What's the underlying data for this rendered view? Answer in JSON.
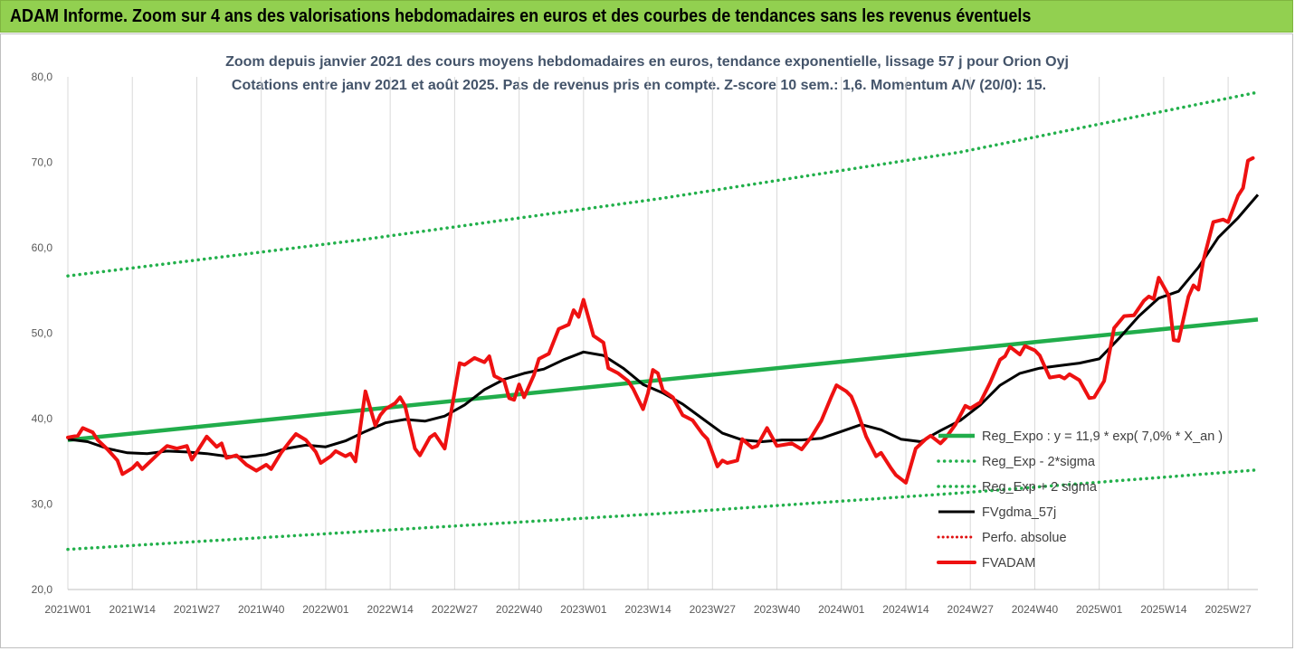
{
  "banner": {
    "title": "ADAM Informe. Zoom sur 4 ans des valorisations hebdomadaires en euros et des courbes de tendances sans les revenus éventuels"
  },
  "chart_data": {
    "type": "line",
    "title": "Zoom depuis janvier 2021 des cours moyens hebdomadaires en euros, tendance exponentielle, lissage 57 j pour Orion Oyj",
    "subtitle": "Cotations entre janv 2021 et août 2025.  Pas de revenus pris en compte. Z-score 10 sem.: 1,6. Momentum A/V (20/0): 15.",
    "ylim": [
      20,
      80
    ],
    "y_ticks": [
      "20,0",
      "30,0",
      "40,0",
      "50,0",
      "60,0",
      "70,0",
      "80,0"
    ],
    "x_ticks": [
      "2021W01",
      "2021W14",
      "2021W27",
      "2021W40",
      "2022W01",
      "2022W14",
      "2022W27",
      "2022W40",
      "2023W01",
      "2023W14",
      "2023W27",
      "2023W40",
      "2024W01",
      "2024W14",
      "2024W27",
      "2024W40",
      "2025W01",
      "2025W14",
      "2025W27"
    ],
    "x_tick_weeks": [
      0,
      13,
      26,
      39,
      52,
      65,
      78,
      91,
      104,
      117,
      130,
      143,
      156,
      169,
      182,
      195,
      208,
      221,
      234
    ],
    "x_max_week": 240,
    "legend_position": "bottom-right",
    "grid": "vertical",
    "colors": {
      "regression": "#21ad4b",
      "bands": "#22b04b",
      "smoothed": "#000000",
      "perf": "#e01010",
      "price": "#ee1111",
      "grid": "#d9d9d9"
    },
    "series": [
      {
        "name": "Reg_Expo : y = 11,9 * exp( 7,0% *  X_an )",
        "style": "regression",
        "points": [
          [
            0,
            37.5
          ],
          [
            240,
            51.6
          ]
        ]
      },
      {
        "name": "Reg_Exp - 2*sigma",
        "style": "band",
        "points": [
          [
            0,
            24.7
          ],
          [
            60,
            26.8
          ],
          [
            120,
            28.9
          ],
          [
            180,
            31.3
          ],
          [
            240,
            34.0
          ]
        ]
      },
      {
        "name": "Reg_Exp + 2 sigma",
        "style": "band",
        "points": [
          [
            0,
            56.7
          ],
          [
            60,
            61.0
          ],
          [
            120,
            65.8
          ],
          [
            180,
            71.2
          ],
          [
            240,
            78.2
          ]
        ]
      },
      {
        "name": "FVgdma_57j",
        "style": "smoothed",
        "points": [
          [
            0,
            37.6
          ],
          [
            4,
            37.3
          ],
          [
            8,
            36.5
          ],
          [
            12,
            36.0
          ],
          [
            16,
            35.9
          ],
          [
            20,
            36.2
          ],
          [
            24,
            36.1
          ],
          [
            28,
            35.9
          ],
          [
            32,
            35.6
          ],
          [
            36,
            35.5
          ],
          [
            40,
            35.8
          ],
          [
            44,
            36.5
          ],
          [
            48,
            36.9
          ],
          [
            52,
            36.7
          ],
          [
            56,
            37.4
          ],
          [
            60,
            38.5
          ],
          [
            64,
            39.5
          ],
          [
            68,
            39.9
          ],
          [
            72,
            39.7
          ],
          [
            76,
            40.3
          ],
          [
            80,
            41.6
          ],
          [
            84,
            43.4
          ],
          [
            88,
            44.6
          ],
          [
            92,
            45.3
          ],
          [
            96,
            45.8
          ],
          [
            100,
            46.9
          ],
          [
            104,
            47.8
          ],
          [
            108,
            47.4
          ],
          [
            112,
            45.9
          ],
          [
            116,
            44.0
          ],
          [
            120,
            43.0
          ],
          [
            124,
            41.7
          ],
          [
            128,
            40.0
          ],
          [
            132,
            38.3
          ],
          [
            136,
            37.5
          ],
          [
            140,
            37.3
          ],
          [
            144,
            37.5
          ],
          [
            148,
            37.5
          ],
          [
            152,
            37.7
          ],
          [
            156,
            38.5
          ],
          [
            160,
            39.3
          ],
          [
            164,
            38.7
          ],
          [
            168,
            37.6
          ],
          [
            172,
            37.3
          ],
          [
            176,
            38.6
          ],
          [
            180,
            39.8
          ],
          [
            184,
            41.6
          ],
          [
            188,
            43.9
          ],
          [
            192,
            45.3
          ],
          [
            196,
            45.9
          ],
          [
            200,
            46.2
          ],
          [
            204,
            46.5
          ],
          [
            208,
            47.0
          ],
          [
            212,
            49.4
          ],
          [
            216,
            52.0
          ],
          [
            220,
            54.1
          ],
          [
            224,
            54.9
          ],
          [
            228,
            57.7
          ],
          [
            232,
            61.2
          ],
          [
            236,
            63.5
          ],
          [
            240,
            66.2
          ]
        ]
      },
      {
        "name": "Perfo. absolue",
        "style": "perf",
        "points": []
      },
      {
        "name": "FVADAM",
        "style": "price",
        "points": [
          [
            0,
            37.8
          ],
          [
            2,
            38.0
          ],
          [
            3,
            38.9
          ],
          [
            5,
            38.4
          ],
          [
            6,
            37.5
          ],
          [
            8,
            36.4
          ],
          [
            10,
            35.1
          ],
          [
            11,
            33.5
          ],
          [
            13,
            34.2
          ],
          [
            14,
            34.8
          ],
          [
            15,
            34.1
          ],
          [
            17,
            35.2
          ],
          [
            19,
            36.3
          ],
          [
            20,
            36.8
          ],
          [
            22,
            36.5
          ],
          [
            24,
            36.8
          ],
          [
            25,
            35.2
          ],
          [
            27,
            37.0
          ],
          [
            28,
            37.9
          ],
          [
            30,
            36.7
          ],
          [
            31,
            37.1
          ],
          [
            32,
            35.4
          ],
          [
            34,
            35.7
          ],
          [
            36,
            34.6
          ],
          [
            38,
            33.9
          ],
          [
            40,
            34.6
          ],
          [
            41,
            34.1
          ],
          [
            43,
            36.0
          ],
          [
            45,
            37.5
          ],
          [
            46,
            38.2
          ],
          [
            48,
            37.5
          ],
          [
            50,
            36.1
          ],
          [
            51,
            34.8
          ],
          [
            53,
            35.6
          ],
          [
            54,
            36.2
          ],
          [
            56,
            35.6
          ],
          [
            57,
            35.9
          ],
          [
            58,
            35.0
          ],
          [
            60,
            43.2
          ],
          [
            62,
            39.2
          ],
          [
            63,
            40.4
          ],
          [
            64,
            41.1
          ],
          [
            66,
            41.8
          ],
          [
            67,
            42.5
          ],
          [
            68,
            41.5
          ],
          [
            70,
            36.5
          ],
          [
            71,
            35.7
          ],
          [
            73,
            37.8
          ],
          [
            74,
            38.2
          ],
          [
            76,
            36.5
          ],
          [
            77,
            39.8
          ],
          [
            79,
            46.5
          ],
          [
            80,
            46.3
          ],
          [
            82,
            47.1
          ],
          [
            84,
            46.6
          ],
          [
            85,
            47.3
          ],
          [
            86,
            45.0
          ],
          [
            88,
            44.4
          ],
          [
            89,
            42.4
          ],
          [
            90,
            42.2
          ],
          [
            91,
            44.0
          ],
          [
            92,
            42.5
          ],
          [
            94,
            45.1
          ],
          [
            95,
            47.0
          ],
          [
            97,
            47.6
          ],
          [
            99,
            50.5
          ],
          [
            101,
            51.0
          ],
          [
            102,
            52.7
          ],
          [
            103,
            51.9
          ],
          [
            104,
            53.9
          ],
          [
            106,
            49.7
          ],
          [
            108,
            48.9
          ],
          [
            109,
            45.9
          ],
          [
            111,
            45.3
          ],
          [
            113,
            44.4
          ],
          [
            114,
            43.5
          ],
          [
            116,
            41.1
          ],
          [
            117,
            43.0
          ],
          [
            118,
            45.7
          ],
          [
            119,
            45.3
          ],
          [
            120,
            43.3
          ],
          [
            122,
            42.5
          ],
          [
            124,
            40.4
          ],
          [
            126,
            39.8
          ],
          [
            128,
            38.2
          ],
          [
            129,
            37.6
          ],
          [
            131,
            34.4
          ],
          [
            132,
            35.1
          ],
          [
            133,
            34.8
          ],
          [
            135,
            35.1
          ],
          [
            136,
            37.6
          ],
          [
            138,
            36.6
          ],
          [
            139,
            36.8
          ],
          [
            141,
            38.9
          ],
          [
            143,
            36.8
          ],
          [
            145,
            37.0
          ],
          [
            146,
            37.1
          ],
          [
            148,
            36.4
          ],
          [
            150,
            37.9
          ],
          [
            152,
            39.8
          ],
          [
            154,
            42.6
          ],
          [
            155,
            43.9
          ],
          [
            157,
            43.2
          ],
          [
            158,
            42.6
          ],
          [
            159,
            41.2
          ],
          [
            161,
            37.9
          ],
          [
            163,
            35.6
          ],
          [
            164,
            36.0
          ],
          [
            166,
            34.2
          ],
          [
            167,
            33.4
          ],
          [
            169,
            32.5
          ],
          [
            171,
            36.5
          ],
          [
            173,
            37.6
          ],
          [
            174,
            38.0
          ],
          [
            176,
            37.1
          ],
          [
            177,
            37.7
          ],
          [
            179,
            39.3
          ],
          [
            181,
            41.5
          ],
          [
            182,
            41.2
          ],
          [
            184,
            41.9
          ],
          [
            186,
            44.2
          ],
          [
            188,
            46.9
          ],
          [
            189,
            47.3
          ],
          [
            190,
            48.4
          ],
          [
            192,
            47.5
          ],
          [
            193,
            48.5
          ],
          [
            195,
            48.0
          ],
          [
            196,
            47.4
          ],
          [
            198,
            44.8
          ],
          [
            200,
            45.0
          ],
          [
            201,
            44.7
          ],
          [
            202,
            45.2
          ],
          [
            204,
            44.5
          ],
          [
            206,
            42.4
          ],
          [
            207,
            42.5
          ],
          [
            209,
            44.4
          ],
          [
            211,
            50.6
          ],
          [
            213,
            52.0
          ],
          [
            215,
            52.1
          ],
          [
            217,
            53.8
          ],
          [
            218,
            54.3
          ],
          [
            219,
            54.0
          ],
          [
            220,
            56.5
          ],
          [
            222,
            54.4
          ],
          [
            223,
            49.2
          ],
          [
            224,
            49.1
          ],
          [
            226,
            54.3
          ],
          [
            227,
            55.6
          ],
          [
            228,
            55.1
          ],
          [
            229,
            58.5
          ],
          [
            231,
            63.0
          ],
          [
            233,
            63.3
          ],
          [
            234,
            63.0
          ],
          [
            236,
            66.1
          ],
          [
            237,
            67.0
          ],
          [
            238,
            70.2
          ],
          [
            239,
            70.5
          ]
        ]
      }
    ]
  }
}
